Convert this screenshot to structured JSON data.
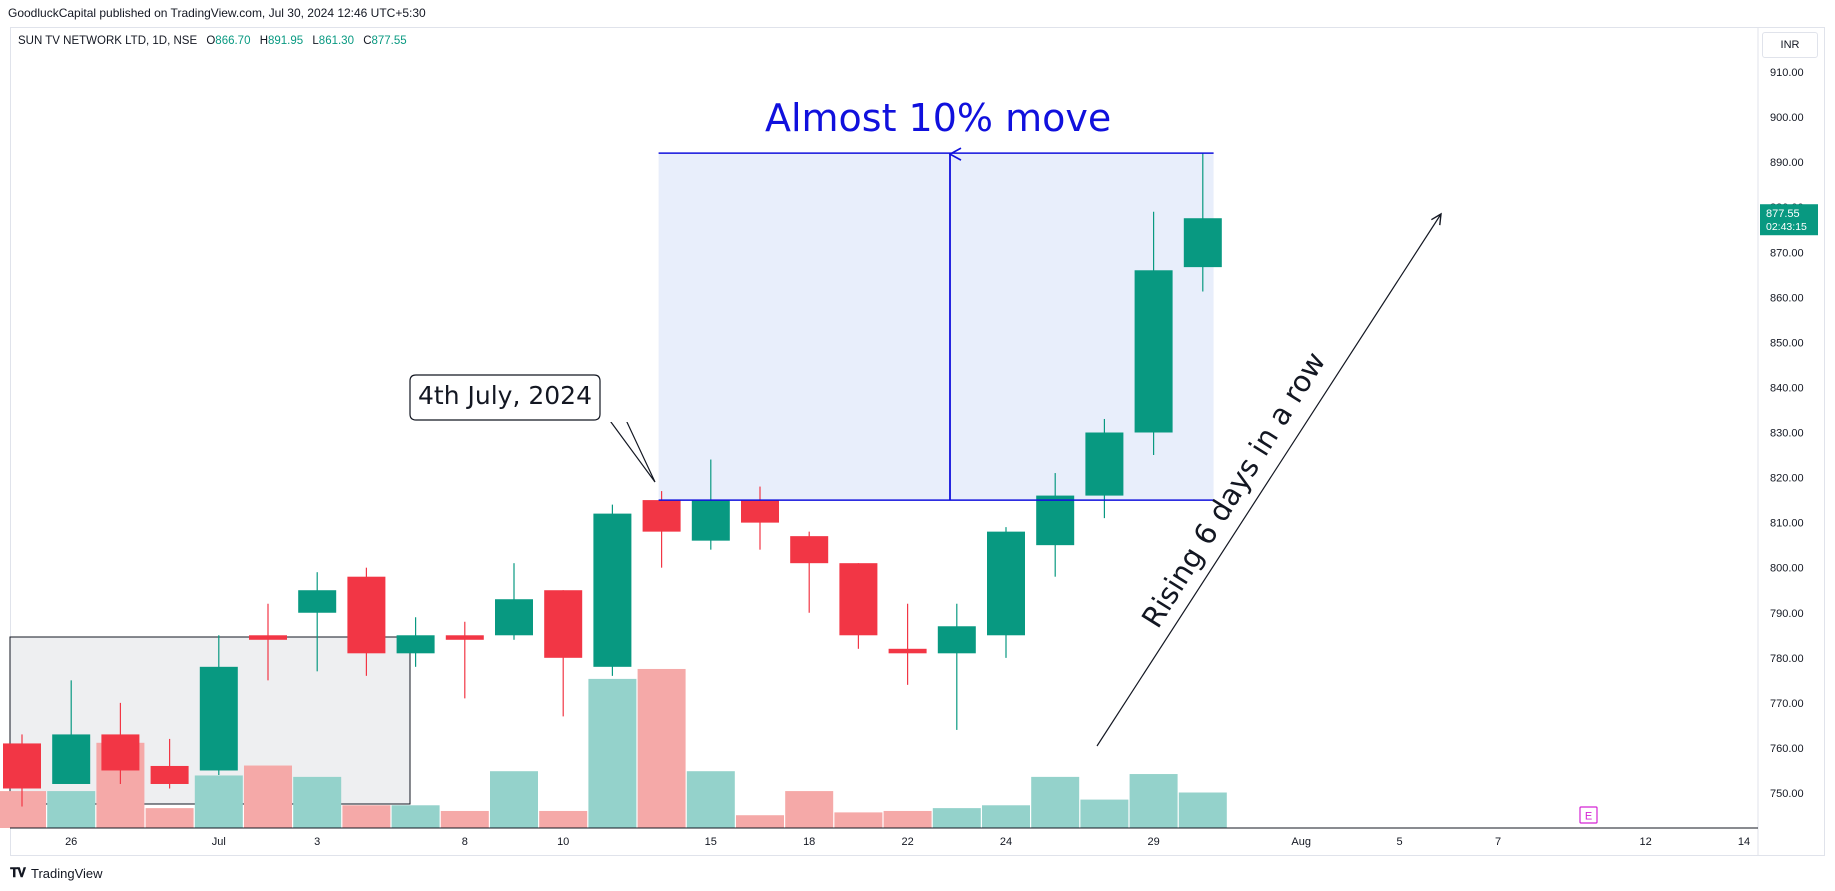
{
  "header": {
    "published_text": "GoodluckCapital published on TradingView.com, Jul 30, 2024 12:46 UTC+5:30"
  },
  "legend": {
    "symbol": "SUN TV NETWORK LTD, 1D, NSE",
    "open_label": "O",
    "open": "866.70",
    "high_label": "H",
    "high": "891.95",
    "low_label": "L",
    "low": "861.30",
    "close_label": "C",
    "close": "877.55"
  },
  "currency_button": "INR",
  "price_tag": {
    "price": "877.55",
    "countdown": "02:43:15"
  },
  "brand": {
    "name": "TradingView"
  },
  "earnings_marker": "E",
  "colors": {
    "up": "#089981",
    "down": "#f23645",
    "volume_up": "#94d2cb",
    "volume_down": "#f5a9a8",
    "annotation": "#1010dd",
    "highlight_box": "#e8eefb",
    "shade_box": "#eeeff1"
  },
  "chart_data": {
    "type": "candlestick",
    "y_axis": {
      "min": 745,
      "max": 915,
      "ticks": [
        750,
        760,
        770,
        780,
        790,
        800,
        810,
        820,
        830,
        840,
        850,
        860,
        870,
        880,
        890,
        900,
        910
      ],
      "labels": [
        "750.00",
        "760.00",
        "770.00",
        "780.00",
        "790.00",
        "800.00",
        "810.00",
        "820.00",
        "830.00",
        "840.00",
        "850.00",
        "860.00",
        "870.00",
        "880.00",
        "890.00",
        "900.00",
        "910.00"
      ]
    },
    "x_axis": {
      "labels": [
        {
          "label": "26",
          "index": 1
        },
        {
          "label": "Jul",
          "index": 4
        },
        {
          "label": "3",
          "index": 6
        },
        {
          "label": "8",
          "index": 9
        },
        {
          "label": "10",
          "index": 11
        },
        {
          "label": "15",
          "index": 14
        },
        {
          "label": "18",
          "index": 16
        },
        {
          "label": "22",
          "index": 18
        },
        {
          "label": "24",
          "index": 20
        },
        {
          "label": "29",
          "index": 23
        },
        {
          "label": "Aug",
          "index": 26
        },
        {
          "label": "5",
          "index": 28
        },
        {
          "label": "7",
          "index": 30
        },
        {
          "label": "12",
          "index": 33
        },
        {
          "label": "14",
          "index": 35
        }
      ]
    },
    "candles": [
      {
        "date": "Jun 25",
        "o": 761,
        "h": 763,
        "l": 747,
        "c": 751
      },
      {
        "date": "Jun 26",
        "o": 752,
        "h": 775,
        "l": 752,
        "c": 763
      },
      {
        "date": "Jun 27",
        "o": 763,
        "h": 770,
        "l": 752,
        "c": 755
      },
      {
        "date": "Jun 28",
        "o": 756,
        "h": 762,
        "l": 751,
        "c": 752
      },
      {
        "date": "Jul 1",
        "o": 755,
        "h": 785,
        "l": 754,
        "c": 778
      },
      {
        "date": "Jul 2",
        "o": 785,
        "h": 792,
        "l": 775,
        "c": 784
      },
      {
        "date": "Jul 3",
        "o": 790,
        "h": 799,
        "l": 777,
        "c": 795
      },
      {
        "date": "Jul 4",
        "o": 798,
        "h": 800,
        "l": 776,
        "c": 781
      },
      {
        "date": "Jul 5",
        "o": 781,
        "h": 789,
        "l": 778,
        "c": 785
      },
      {
        "date": "Jul 8",
        "o": 785,
        "h": 788,
        "l": 771,
        "c": 784
      },
      {
        "date": "Jul 9",
        "o": 785,
        "h": 801,
        "l": 784,
        "c": 793
      },
      {
        "date": "Jul 10",
        "o": 795,
        "h": 795,
        "l": 767,
        "c": 780
      },
      {
        "date": "Jul 11",
        "o": 778,
        "h": 814,
        "l": 776,
        "c": 812
      },
      {
        "date": "Jul 12",
        "o": 815,
        "h": 817,
        "l": 800,
        "c": 808
      },
      {
        "date": "Jul 15",
        "o": 806,
        "h": 824,
        "l": 804,
        "c": 815
      },
      {
        "date": "Jul 16",
        "o": 815,
        "h": 818,
        "l": 804,
        "c": 810
      },
      {
        "date": "Jul 18",
        "o": 807,
        "h": 808,
        "l": 790,
        "c": 801
      },
      {
        "date": "Jul 19",
        "o": 801,
        "h": 801,
        "l": 782,
        "c": 785
      },
      {
        "date": "Jul 22",
        "o": 782,
        "h": 792,
        "l": 774,
        "c": 781
      },
      {
        "date": "Jul 23",
        "o": 781,
        "h": 792,
        "l": 764,
        "c": 787
      },
      {
        "date": "Jul 24",
        "o": 785,
        "h": 809,
        "l": 780,
        "c": 808
      },
      {
        "date": "Jul 25",
        "o": 805,
        "h": 821,
        "l": 798,
        "c": 816
      },
      {
        "date": "Jul 26",
        "o": 816,
        "h": 833,
        "l": 811,
        "c": 830
      },
      {
        "date": "Jul 29",
        "o": 830,
        "h": 879,
        "l": 825,
        "c": 866
      },
      {
        "date": "Jul 30",
        "o": 866.7,
        "h": 891.95,
        "l": 861.3,
        "c": 877.55
      }
    ],
    "volume": [
      {
        "v": 26,
        "up": false
      },
      {
        "v": 26,
        "up": true
      },
      {
        "v": 60,
        "up": false
      },
      {
        "v": 14,
        "up": false
      },
      {
        "v": 37,
        "up": true
      },
      {
        "v": 44,
        "up": false
      },
      {
        "v": 36,
        "up": true
      },
      {
        "v": 16,
        "up": false
      },
      {
        "v": 16,
        "up": true
      },
      {
        "v": 12,
        "up": false
      },
      {
        "v": 40,
        "up": true
      },
      {
        "v": 12,
        "up": false
      },
      {
        "v": 105,
        "up": true
      },
      {
        "v": 112,
        "up": false
      },
      {
        "v": 40,
        "up": true
      },
      {
        "v": 9,
        "up": false
      },
      {
        "v": 26,
        "up": false
      },
      {
        "v": 11,
        "up": false
      },
      {
        "v": 12,
        "up": false
      },
      {
        "v": 14,
        "up": true
      },
      {
        "v": 16,
        "up": true
      },
      {
        "v": 36,
        "up": true
      },
      {
        "v": 20,
        "up": true
      },
      {
        "v": 38,
        "up": true
      },
      {
        "v": 25,
        "up": true
      }
    ],
    "annotations": {
      "move_label": "Almost 10% move",
      "callout_label": "4th July, 2024",
      "trend_label": "Rising 6 days in a row",
      "range_top": 892,
      "range_bottom": 815
    }
  }
}
